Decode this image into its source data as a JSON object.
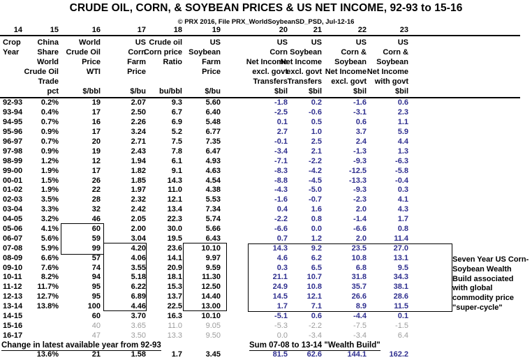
{
  "title": "CRUDE OIL, CORN, & SOYBEAN PRICES & US NET INCOME, 92-93 to 15-16",
  "subtitle": "© PRX 2016, File PRX_WorldSoybeanSD_PSD, Jul-12-16",
  "column_numbers": [
    "14",
    "15",
    "16",
    "17",
    "18",
    "19",
    "20",
    "21",
    "22",
    "23"
  ],
  "column_headers": [
    [
      "Crop",
      "Year",
      "",
      "",
      "",
      ""
    ],
    [
      "China",
      "Share",
      "World",
      "Crude Oil",
      "Trade",
      "pct"
    ],
    [
      "World",
      "Crude Oil",
      "Price",
      "WTI",
      "",
      "$/bbl"
    ],
    [
      "US",
      "Corn",
      "Farm",
      "Price",
      "",
      "$/bu"
    ],
    [
      "Crude oil",
      "Corn price",
      "Ratio",
      "",
      "",
      "bu/bbl"
    ],
    [
      "US",
      "Soybean",
      "Farm",
      "Price",
      "",
      "$/bu"
    ],
    [
      "US",
      "Corn",
      "Net Income",
      "excl. govt",
      "Transfers",
      "$bil"
    ],
    [
      "US",
      "Soybean",
      "Net Income",
      "excl. govt",
      "Transfers",
      "$bil"
    ],
    [
      "US",
      "Corn &",
      "Soybean",
      "Net Income",
      "excl. govt",
      "$bil"
    ],
    [
      "US",
      "Corn &",
      "Soybean",
      "Net Income",
      "with govt",
      "$bil"
    ]
  ],
  "rows": [
    {
      "year": "92-93",
      "values": [
        "0.2%",
        "19",
        "2.07",
        "9.3",
        "5.60",
        "-1.8",
        "0.2",
        "-1.6",
        "0.6"
      ],
      "muted": false
    },
    {
      "year": "93-94",
      "values": [
        "0.4%",
        "17",
        "2.50",
        "6.7",
        "6.40",
        "-2.5",
        "-0.6",
        "-3.1",
        "2.3"
      ],
      "muted": false
    },
    {
      "year": "94-95",
      "values": [
        "0.7%",
        "16",
        "2.26",
        "6.9",
        "5.48",
        "0.1",
        "0.5",
        "0.6",
        "1.1"
      ],
      "muted": false
    },
    {
      "year": "95-96",
      "values": [
        "0.9%",
        "17",
        "3.24",
        "5.2",
        "6.77",
        "2.7",
        "1.0",
        "3.7",
        "5.9"
      ],
      "muted": false
    },
    {
      "year": "96-97",
      "values": [
        "0.7%",
        "20",
        "2.71",
        "7.5",
        "7.35",
        "-0.1",
        "2.5",
        "2.4",
        "4.4"
      ],
      "muted": false
    },
    {
      "year": "97-98",
      "values": [
        "0.9%",
        "19",
        "2.43",
        "7.8",
        "6.47",
        "-3.4",
        "2.1",
        "-1.3",
        "1.3"
      ],
      "muted": false
    },
    {
      "year": "98-99",
      "values": [
        "1.2%",
        "12",
        "1.94",
        "6.1",
        "4.93",
        "-7.1",
        "-2.2",
        "-9.3",
        "-6.3"
      ],
      "muted": false
    },
    {
      "year": "99-00",
      "values": [
        "1.9%",
        "17",
        "1.82",
        "9.1",
        "4.63",
        "-8.3",
        "-4.2",
        "-12.5",
        "-5.8"
      ],
      "muted": false
    },
    {
      "year": "00-01",
      "values": [
        "1.5%",
        "26",
        "1.85",
        "14.3",
        "4.54",
        "-8.8",
        "-4.5",
        "-13.3",
        "-0.4"
      ],
      "muted": false
    },
    {
      "year": "01-02",
      "values": [
        "1.9%",
        "22",
        "1.97",
        "11.0",
        "4.38",
        "-4.3",
        "-5.0",
        "-9.3",
        "0.3"
      ],
      "muted": false
    },
    {
      "year": "02-03",
      "values": [
        "3.5%",
        "28",
        "2.32",
        "12.1",
        "5.53",
        "-1.6",
        "-0.7",
        "-2.3",
        "4.1"
      ],
      "muted": false
    },
    {
      "year": "03-04",
      "values": [
        "3.3%",
        "32",
        "2.42",
        "13.4",
        "7.34",
        "0.4",
        "1.6",
        "2.0",
        "4.3"
      ],
      "muted": false
    },
    {
      "year": "04-05",
      "values": [
        "3.2%",
        "46",
        "2.05",
        "22.3",
        "5.74",
        "-2.2",
        "0.8",
        "-1.4",
        "1.7"
      ],
      "muted": false
    },
    {
      "year": "05-06",
      "values": [
        "4.1%",
        "60",
        "2.00",
        "30.0",
        "5.66",
        "-6.6",
        "0.0",
        "-6.6",
        "0.8"
      ],
      "muted": false
    },
    {
      "year": "06-07",
      "values": [
        "5.6%",
        "59",
        "3.04",
        "19.5",
        "6.43",
        "0.7",
        "1.2",
        "2.0",
        "11.4"
      ],
      "muted": false
    },
    {
      "year": "07-08",
      "values": [
        "5.9%",
        "99",
        "4.20",
        "23.6",
        "10.10",
        "14.3",
        "9.2",
        "23.5",
        "27.0"
      ],
      "muted": false
    },
    {
      "year": "08-09",
      "values": [
        "6.6%",
        "57",
        "4.06",
        "14.1",
        "9.97",
        "4.6",
        "6.2",
        "10.8",
        "13.1"
      ],
      "muted": false
    },
    {
      "year": "09-10",
      "values": [
        "7.6%",
        "74",
        "3.55",
        "20.9",
        "9.59",
        "0.3",
        "6.5",
        "6.8",
        "9.5"
      ],
      "muted": false
    },
    {
      "year": "10-11",
      "values": [
        "8.2%",
        "94",
        "5.18",
        "18.1",
        "11.30",
        "21.1",
        "10.7",
        "31.8",
        "34.3"
      ],
      "muted": false
    },
    {
      "year": "11-12",
      "values": [
        "11.7%",
        "95",
        "6.22",
        "15.3",
        "12.50",
        "24.9",
        "10.8",
        "35.7",
        "38.1"
      ],
      "muted": false
    },
    {
      "year": "12-13",
      "values": [
        "12.7%",
        "95",
        "6.89",
        "13.7",
        "14.40",
        "14.5",
        "12.1",
        "26.6",
        "28.6"
      ],
      "muted": false
    },
    {
      "year": "13-14",
      "values": [
        "13.8%",
        "100",
        "4.46",
        "22.5",
        "13.00",
        "1.7",
        "7.1",
        "8.9",
        "11.5"
      ],
      "muted": false
    },
    {
      "year": "14-15",
      "values": [
        "",
        "60",
        "3.70",
        "16.3",
        "10.10",
        "-5.1",
        "0.6",
        "-4.4",
        "0.1"
      ],
      "muted": false
    },
    {
      "year": "15-16",
      "values": [
        "",
        "40",
        "3.65",
        "11.0",
        "9.05",
        "-5.3",
        "-2.2",
        "-7.5",
        "-1.5"
      ],
      "muted": true
    },
    {
      "year": "16-17",
      "values": [
        "",
        "47",
        "3.50",
        "13.3",
        "9.50",
        "0.0",
        "-3.4",
        "-3.4",
        "6.4"
      ],
      "muted": true
    }
  ],
  "footer": {
    "change_label": "Change in latest available year from 92-93",
    "sum_label": "Sum 07-08 to 13-14 \"Wealth Build\"",
    "values": [
      "13.6%",
      "21",
      "1.58",
      "1.7",
      "3.45",
      "81.5",
      "62.6",
      "144.1",
      "162.2"
    ]
  },
  "annotation_lines": [
    "Seven Year US Corn-",
    "Soybean Wealth",
    "Build associated",
    "with global",
    "commodity price",
    "\"super-cycle\""
  ],
  "colors": {
    "income": "#2F2F8F",
    "muted": "#9C9C9C",
    "text": "#000000"
  }
}
